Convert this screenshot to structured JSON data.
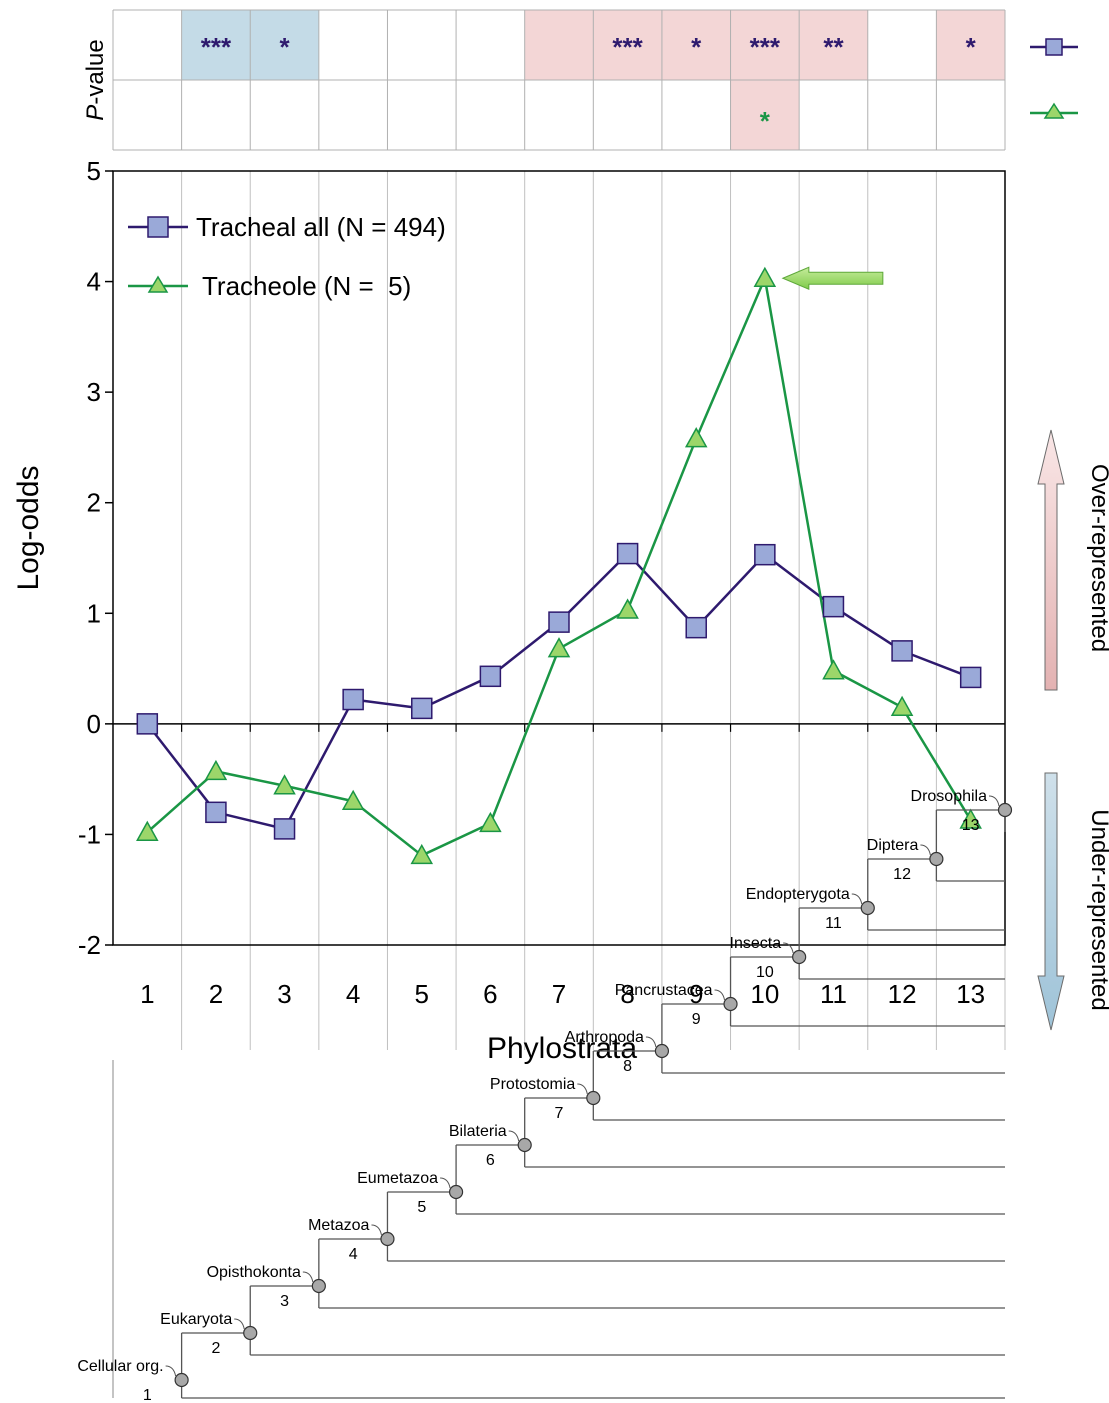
{
  "chart_data": {
    "type": "line",
    "title": "",
    "xlabel": "Phylostrata",
    "ylabel": "Log-odds",
    "x": [
      1,
      2,
      3,
      4,
      5,
      6,
      7,
      8,
      9,
      10,
      11,
      12,
      13
    ],
    "ylim": [
      -2,
      5
    ],
    "yticks": [
      -2,
      -1,
      0,
      1,
      2,
      3,
      4,
      5
    ],
    "grid": "vertical lines at each phylostratum",
    "legend_position": "top-left",
    "series": [
      {
        "name": "Tracheal all (N = 494)",
        "color": "#2e1a6e",
        "marker": "square",
        "marker_fill": "#9aa9d8",
        "values": [
          0.0,
          -0.8,
          -0.95,
          0.22,
          0.14,
          0.43,
          0.92,
          1.54,
          0.87,
          1.53,
          1.06,
          0.66,
          0.42
        ]
      },
      {
        "name": "Tracheole (N =  5)",
        "color": "#1a9645",
        "marker": "triangle",
        "marker_fill": "#9cd66a",
        "values": [
          -0.98,
          -0.43,
          -0.56,
          -0.7,
          -1.19,
          -0.9,
          0.68,
          1.03,
          2.58,
          4.03,
          0.48,
          0.15,
          -0.87
        ]
      }
    ],
    "annotations": {
      "arrow_on_tracheole_peak": "x = 10"
    }
  },
  "pvalue_panel": {
    "label_italic": "P",
    "label_rest": "-value",
    "rows": [
      {
        "series": "Tracheal all",
        "cells": [
          {
            "stars": "",
            "shade": "none"
          },
          {
            "stars": "***",
            "shade": "under"
          },
          {
            "stars": "*",
            "shade": "under"
          },
          {
            "stars": "",
            "shade": "none"
          },
          {
            "stars": "",
            "shade": "none"
          },
          {
            "stars": "",
            "shade": "none"
          },
          {
            "stars": "",
            "shade": "over"
          },
          {
            "stars": "***",
            "shade": "over"
          },
          {
            "stars": "*",
            "shade": "over"
          },
          {
            "stars": "***",
            "shade": "over"
          },
          {
            "stars": "**",
            "shade": "over"
          },
          {
            "stars": "",
            "shade": "none"
          },
          {
            "stars": "*",
            "shade": "over"
          }
        ]
      },
      {
        "series": "Tracheole",
        "cells": [
          {
            "stars": "",
            "shade": "none"
          },
          {
            "stars": "",
            "shade": "none"
          },
          {
            "stars": "",
            "shade": "none"
          },
          {
            "stars": "",
            "shade": "none"
          },
          {
            "stars": "",
            "shade": "none"
          },
          {
            "stars": "",
            "shade": "none"
          },
          {
            "stars": "",
            "shade": "none"
          },
          {
            "stars": "",
            "shade": "none"
          },
          {
            "stars": "",
            "shade": "none"
          },
          {
            "stars": "*",
            "shade": "over"
          },
          {
            "stars": "",
            "shade": "none"
          },
          {
            "stars": "",
            "shade": "none"
          },
          {
            "stars": "",
            "shade": "none"
          }
        ]
      }
    ]
  },
  "side_labels": {
    "over": "Over-represented",
    "under": "Under-represented"
  },
  "colors": {
    "over_shade": "#f3d6d6",
    "under_shade": "#c4dbe7",
    "tracheal_line": "#2e1a6e",
    "tracheal_marker": "#9aa9d8",
    "tracheole_line": "#1a9645",
    "tracheole_marker": "#9cd66a",
    "tree_node": "#a8a8a8"
  },
  "tree": {
    "clades": [
      {
        "name": "Cellular org.",
        "stratum": 1
      },
      {
        "name": "Eukaryota",
        "stratum": 2
      },
      {
        "name": "Opisthokonta",
        "stratum": 3
      },
      {
        "name": "Metazoa",
        "stratum": 4
      },
      {
        "name": "Eumetazoa",
        "stratum": 5
      },
      {
        "name": "Bilateria",
        "stratum": 6
      },
      {
        "name": "Protostomia",
        "stratum": 7
      },
      {
        "name": "Arthropoda",
        "stratum": 8
      },
      {
        "name": "Pancrustacea",
        "stratum": 9
      },
      {
        "name": "Insecta",
        "stratum": 10
      },
      {
        "name": "Endopterygota",
        "stratum": 11
      },
      {
        "name": "Diptera",
        "stratum": 12
      },
      {
        "name": "Drosophila",
        "stratum": 13
      }
    ]
  }
}
